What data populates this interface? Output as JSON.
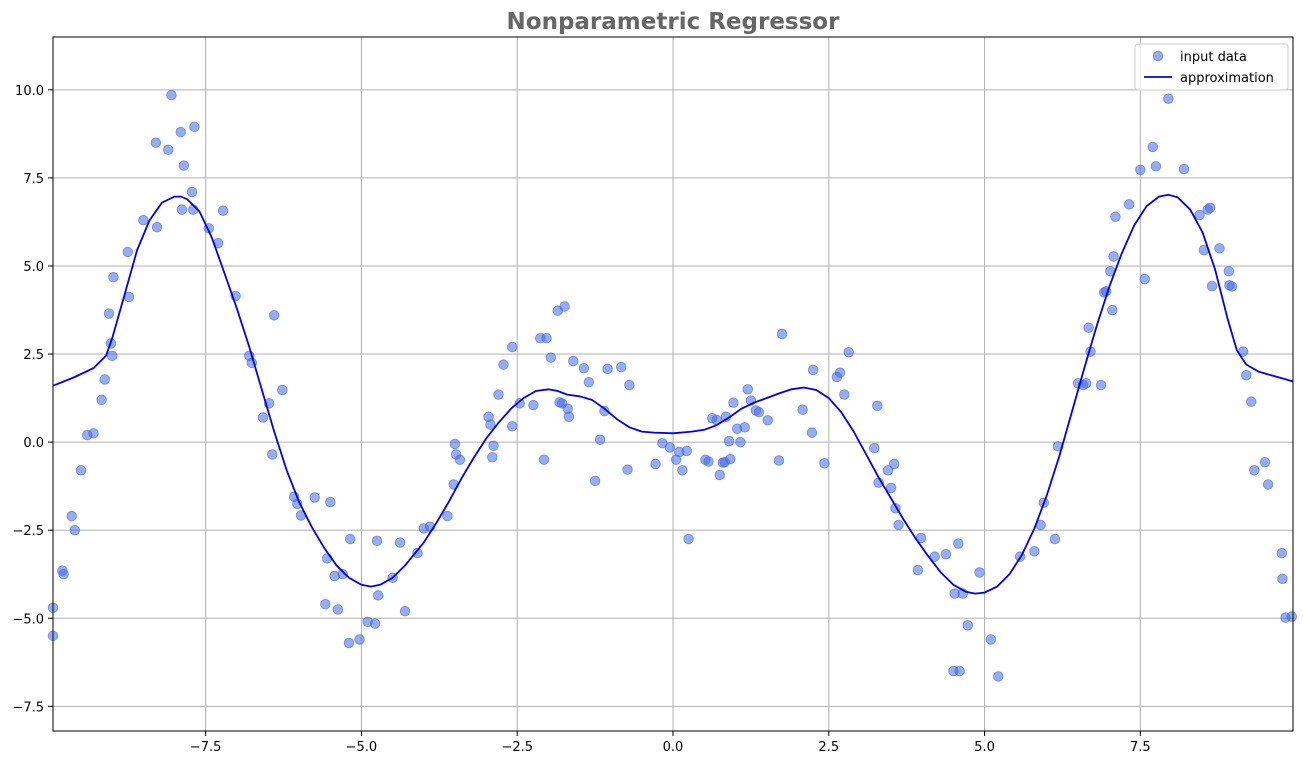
{
  "chart_data": {
    "type": "scatter",
    "title": "Nonparametric Regressor",
    "xlabel": "",
    "ylabel": "",
    "xlim": [
      -9.95,
      9.95
    ],
    "ylim": [
      -8.2,
      11.5
    ],
    "grid": true,
    "legend_position": "top-right",
    "x_ticks": [
      -7.5,
      -5.0,
      -2.5,
      0.0,
      2.5,
      5.0,
      7.5
    ],
    "x_tick_labels": [
      "−7.5",
      "−5.0",
      "−2.5",
      "0.0",
      "2.5",
      "5.0",
      "7.5"
    ],
    "y_ticks": [
      -7.5,
      -5.0,
      -2.5,
      0.0,
      2.5,
      5.0,
      7.5,
      10.0
    ],
    "y_tick_labels": [
      "−7.5",
      "−5.0",
      "−2.5",
      "0.0",
      "2.5",
      "5.0",
      "7.5",
      "10.0"
    ],
    "series": [
      {
        "name": "input data",
        "kind": "scatter",
        "color": "#4169e1",
        "points": [
          [
            -9.95,
            -4.7
          ],
          [
            -9.95,
            -5.5
          ],
          [
            -9.8,
            -3.65
          ],
          [
            -9.78,
            -3.75
          ],
          [
            -9.65,
            -2.1
          ],
          [
            -9.6,
            -2.5
          ],
          [
            -9.5,
            -0.8
          ],
          [
            -9.4,
            0.2
          ],
          [
            -9.3,
            0.25
          ],
          [
            -9.17,
            1.2
          ],
          [
            -9.12,
            1.78
          ],
          [
            -9.05,
            3.65
          ],
          [
            -9.02,
            2.8
          ],
          [
            -9.0,
            2.45
          ],
          [
            -8.98,
            4.68
          ],
          [
            -8.75,
            5.4
          ],
          [
            -8.73,
            4.12
          ],
          [
            -8.5,
            6.3
          ],
          [
            -8.3,
            8.5
          ],
          [
            -8.28,
            6.1
          ],
          [
            -8.1,
            8.3
          ],
          [
            -8.05,
            9.85
          ],
          [
            -7.9,
            8.8
          ],
          [
            -7.88,
            6.6
          ],
          [
            -7.85,
            7.85
          ],
          [
            -7.72,
            7.1
          ],
          [
            -7.7,
            6.6
          ],
          [
            -7.68,
            8.95
          ],
          [
            -7.45,
            6.07
          ],
          [
            -7.3,
            5.65
          ],
          [
            -7.22,
            6.57
          ],
          [
            -7.02,
            4.15
          ],
          [
            -6.8,
            2.45
          ],
          [
            -6.76,
            2.25
          ],
          [
            -6.58,
            0.7
          ],
          [
            -6.48,
            1.1
          ],
          [
            -6.43,
            -0.35
          ],
          [
            -6.4,
            3.6
          ],
          [
            -6.27,
            1.48
          ],
          [
            -6.08,
            -1.55
          ],
          [
            -6.03,
            -1.75
          ],
          [
            -5.97,
            -2.08
          ],
          [
            -5.75,
            -1.57
          ],
          [
            -5.58,
            -4.6
          ],
          [
            -5.55,
            -3.3
          ],
          [
            -5.5,
            -1.7
          ],
          [
            -5.43,
            -3.8
          ],
          [
            -5.38,
            -4.75
          ],
          [
            -5.3,
            -3.75
          ],
          [
            -5.2,
            -5.7
          ],
          [
            -5.18,
            -2.75
          ],
          [
            -5.03,
            -5.6
          ],
          [
            -4.9,
            -5.1
          ],
          [
            -4.78,
            -5.15
          ],
          [
            -4.73,
            -4.35
          ],
          [
            -4.75,
            -2.8
          ],
          [
            -4.5,
            -3.85
          ],
          [
            -4.38,
            -2.85
          ],
          [
            -4.3,
            -4.8
          ],
          [
            -4.1,
            -3.15
          ],
          [
            -4.0,
            -2.45
          ],
          [
            -3.9,
            -2.4
          ],
          [
            -3.62,
            -2.1
          ],
          [
            -3.52,
            -1.2
          ],
          [
            -3.5,
            -0.05
          ],
          [
            -3.48,
            -0.35
          ],
          [
            -3.42,
            -0.5
          ],
          [
            -2.96,
            0.72
          ],
          [
            -2.93,
            0.5
          ],
          [
            -2.9,
            -0.43
          ],
          [
            -2.88,
            -0.1
          ],
          [
            -2.8,
            1.35
          ],
          [
            -2.72,
            2.2
          ],
          [
            -2.58,
            2.7
          ],
          [
            -2.58,
            0.45
          ],
          [
            -2.46,
            1.1
          ],
          [
            -2.24,
            1.05
          ],
          [
            -2.13,
            2.95
          ],
          [
            -2.07,
            -0.5
          ],
          [
            -2.03,
            2.95
          ],
          [
            -1.96,
            2.4
          ],
          [
            -1.85,
            3.73
          ],
          [
            -1.82,
            1.13
          ],
          [
            -1.78,
            1.1
          ],
          [
            -1.74,
            3.85
          ],
          [
            -1.69,
            0.95
          ],
          [
            -1.67,
            0.72
          ],
          [
            -1.6,
            2.3
          ],
          [
            -1.43,
            2.1
          ],
          [
            -1.35,
            1.7
          ],
          [
            -1.25,
            -1.1
          ],
          [
            -1.17,
            0.07
          ],
          [
            -1.1,
            0.88
          ],
          [
            -1.05,
            2.08
          ],
          [
            -0.83,
            2.13
          ],
          [
            -0.73,
            -0.78
          ],
          [
            -0.7,
            1.62
          ],
          [
            -0.28,
            -0.62
          ],
          [
            -0.17,
            -0.03
          ],
          [
            -0.05,
            -0.15
          ],
          [
            0.05,
            -0.5
          ],
          [
            0.1,
            -0.28
          ],
          [
            0.15,
            -0.8
          ],
          [
            0.22,
            -0.25
          ],
          [
            0.25,
            -2.75
          ],
          [
            0.52,
            -0.5
          ],
          [
            0.57,
            -0.55
          ],
          [
            0.63,
            0.68
          ],
          [
            0.7,
            0.63
          ],
          [
            0.75,
            -0.93
          ],
          [
            0.8,
            -0.58
          ],
          [
            0.83,
            -0.57
          ],
          [
            0.85,
            0.72
          ],
          [
            0.9,
            0.03
          ],
          [
            0.92,
            -0.48
          ],
          [
            0.97,
            1.12
          ],
          [
            1.03,
            0.38
          ],
          [
            1.08,
            0.0
          ],
          [
            1.15,
            0.42
          ],
          [
            1.2,
            1.5
          ],
          [
            1.25,
            1.18
          ],
          [
            1.33,
            0.9
          ],
          [
            1.38,
            0.85
          ],
          [
            1.52,
            0.62
          ],
          [
            1.7,
            -0.52
          ],
          [
            1.75,
            3.07
          ],
          [
            2.08,
            0.92
          ],
          [
            2.23,
            0.27
          ],
          [
            2.25,
            2.05
          ],
          [
            2.43,
            -0.6
          ],
          [
            2.63,
            1.85
          ],
          [
            2.68,
            1.97
          ],
          [
            2.75,
            1.35
          ],
          [
            2.82,
            2.55
          ],
          [
            3.23,
            -0.17
          ],
          [
            3.28,
            1.03
          ],
          [
            3.3,
            -1.15
          ],
          [
            3.45,
            -0.8
          ],
          [
            3.5,
            -1.3
          ],
          [
            3.55,
            -0.62
          ],
          [
            3.57,
            -1.88
          ],
          [
            3.62,
            -2.35
          ],
          [
            3.93,
            -3.63
          ],
          [
            3.98,
            -2.72
          ],
          [
            4.2,
            -3.25
          ],
          [
            4.38,
            -3.18
          ],
          [
            4.5,
            -6.5
          ],
          [
            4.52,
            -4.3
          ],
          [
            4.58,
            -2.88
          ],
          [
            4.6,
            -6.5
          ],
          [
            4.65,
            -4.3
          ],
          [
            4.73,
            -5.2
          ],
          [
            4.92,
            -3.7
          ],
          [
            5.1,
            -5.6
          ],
          [
            5.22,
            -6.65
          ],
          [
            5.57,
            -3.25
          ],
          [
            5.8,
            -3.1
          ],
          [
            5.9,
            -2.35
          ],
          [
            5.95,
            -1.72
          ],
          [
            6.13,
            -2.75
          ],
          [
            6.18,
            -0.12
          ],
          [
            6.5,
            1.67
          ],
          [
            6.58,
            1.62
          ],
          [
            6.63,
            1.67
          ],
          [
            6.67,
            3.25
          ],
          [
            6.7,
            2.57
          ],
          [
            6.87,
            1.62
          ],
          [
            6.92,
            4.25
          ],
          [
            6.95,
            4.28
          ],
          [
            7.02,
            4.85
          ],
          [
            7.05,
            3.75
          ],
          [
            7.07,
            5.27
          ],
          [
            7.1,
            6.4
          ],
          [
            7.32,
            6.75
          ],
          [
            7.5,
            7.73
          ],
          [
            7.57,
            4.63
          ],
          [
            7.7,
            8.38
          ],
          [
            7.75,
            7.83
          ],
          [
            7.95,
            9.75
          ],
          [
            8.2,
            7.75
          ],
          [
            8.45,
            6.45
          ],
          [
            8.52,
            5.45
          ],
          [
            8.58,
            6.6
          ],
          [
            8.62,
            6.65
          ],
          [
            8.65,
            4.43
          ],
          [
            8.77,
            5.5
          ],
          [
            8.92,
            4.85
          ],
          [
            8.93,
            4.45
          ],
          [
            8.97,
            4.42
          ],
          [
            9.15,
            2.57
          ],
          [
            9.2,
            1.9
          ],
          [
            9.28,
            1.15
          ],
          [
            9.33,
            -0.8
          ],
          [
            9.5,
            -0.57
          ],
          [
            9.55,
            -1.2
          ],
          [
            9.77,
            -3.15
          ],
          [
            9.78,
            -3.88
          ],
          [
            9.83,
            -4.98
          ],
          [
            9.93,
            -4.95
          ]
        ]
      },
      {
        "name": "approximation",
        "kind": "line",
        "color": "#0000ee",
        "points": [
          [
            -9.95,
            1.6
          ],
          [
            -9.6,
            1.85
          ],
          [
            -9.3,
            2.1
          ],
          [
            -9.1,
            2.45
          ],
          [
            -9.0,
            2.95
          ],
          [
            -8.8,
            4.2
          ],
          [
            -8.6,
            5.45
          ],
          [
            -8.4,
            6.3
          ],
          [
            -8.2,
            6.8
          ],
          [
            -8.0,
            6.97
          ],
          [
            -7.9,
            6.97
          ],
          [
            -7.8,
            6.9
          ],
          [
            -7.6,
            6.55
          ],
          [
            -7.4,
            5.8
          ],
          [
            -7.2,
            4.8
          ],
          [
            -7.0,
            3.8
          ],
          [
            -6.8,
            2.7
          ],
          [
            -6.6,
            1.5
          ],
          [
            -6.4,
            0.3
          ],
          [
            -6.2,
            -0.8
          ],
          [
            -6.0,
            -1.7
          ],
          [
            -5.8,
            -2.4
          ],
          [
            -5.6,
            -3.0
          ],
          [
            -5.4,
            -3.5
          ],
          [
            -5.2,
            -3.85
          ],
          [
            -5.0,
            -4.05
          ],
          [
            -4.85,
            -4.1
          ],
          [
            -4.7,
            -4.05
          ],
          [
            -4.5,
            -3.85
          ],
          [
            -4.3,
            -3.5
          ],
          [
            -4.0,
            -2.85
          ],
          [
            -3.8,
            -2.3
          ],
          [
            -3.6,
            -1.7
          ],
          [
            -3.4,
            -1.05
          ],
          [
            -3.2,
            -0.45
          ],
          [
            -3.0,
            0.1
          ],
          [
            -2.8,
            0.55
          ],
          [
            -2.6,
            0.95
          ],
          [
            -2.4,
            1.25
          ],
          [
            -2.2,
            1.45
          ],
          [
            -2.0,
            1.5
          ],
          [
            -1.85,
            1.45
          ],
          [
            -1.7,
            1.35
          ],
          [
            -1.5,
            1.3
          ],
          [
            -1.3,
            1.2
          ],
          [
            -1.1,
            0.95
          ],
          [
            -0.9,
            0.65
          ],
          [
            -0.7,
            0.42
          ],
          [
            -0.5,
            0.3
          ],
          [
            -0.3,
            0.27
          ],
          [
            0.0,
            0.25
          ],
          [
            0.3,
            0.3
          ],
          [
            0.5,
            0.35
          ],
          [
            0.7,
            0.48
          ],
          [
            0.9,
            0.7
          ],
          [
            1.1,
            0.95
          ],
          [
            1.3,
            1.12
          ],
          [
            1.5,
            1.25
          ],
          [
            1.7,
            1.38
          ],
          [
            1.9,
            1.5
          ],
          [
            2.1,
            1.55
          ],
          [
            2.3,
            1.48
          ],
          [
            2.5,
            1.25
          ],
          [
            2.7,
            0.85
          ],
          [
            2.9,
            0.3
          ],
          [
            3.1,
            -0.35
          ],
          [
            3.3,
            -1.0
          ],
          [
            3.5,
            -1.6
          ],
          [
            3.7,
            -2.2
          ],
          [
            3.9,
            -2.75
          ],
          [
            4.1,
            -3.25
          ],
          [
            4.3,
            -3.7
          ],
          [
            4.5,
            -4.05
          ],
          [
            4.7,
            -4.25
          ],
          [
            4.85,
            -4.3
          ],
          [
            5.0,
            -4.27
          ],
          [
            5.2,
            -4.1
          ],
          [
            5.4,
            -3.75
          ],
          [
            5.6,
            -3.2
          ],
          [
            5.8,
            -2.45
          ],
          [
            6.0,
            -1.5
          ],
          [
            6.2,
            -0.4
          ],
          [
            6.4,
            0.85
          ],
          [
            6.6,
            2.1
          ],
          [
            6.8,
            3.3
          ],
          [
            7.0,
            4.4
          ],
          [
            7.2,
            5.35
          ],
          [
            7.4,
            6.15
          ],
          [
            7.6,
            6.7
          ],
          [
            7.8,
            6.97
          ],
          [
            7.95,
            7.02
          ],
          [
            8.1,
            6.95
          ],
          [
            8.3,
            6.6
          ],
          [
            8.5,
            5.95
          ],
          [
            8.7,
            4.9
          ],
          [
            8.9,
            3.5
          ],
          [
            9.05,
            2.6
          ],
          [
            9.2,
            2.2
          ],
          [
            9.4,
            2.0
          ],
          [
            9.6,
            1.9
          ],
          [
            9.8,
            1.8
          ],
          [
            9.95,
            1.72
          ]
        ]
      }
    ]
  }
}
